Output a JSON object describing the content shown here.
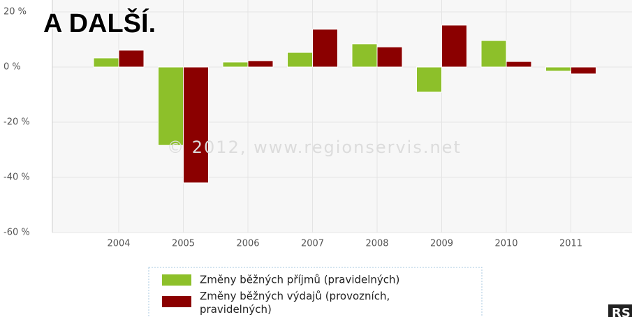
{
  "chart_data": {
    "type": "bar",
    "title": "A DALŠÍ.",
    "watermark": "© 2012, www.regionservis.net",
    "logo": "RS",
    "categories": [
      "2004",
      "2005",
      "2006",
      "2007",
      "2008",
      "2009",
      "2010",
      "2011"
    ],
    "series": [
      {
        "name": "Změny běžných příjmů (pravidelných)",
        "color": "#8dc02a",
        "values": [
          3.3,
          -28.4,
          1.8,
          5.3,
          8.4,
          -9.1,
          9.6,
          -1.5
        ]
      },
      {
        "name": "Změny běžných výdajů (provozních, pravidelných)",
        "color": "#8b0000",
        "values": [
          6.1,
          -42,
          2.3,
          13.7,
          7.3,
          15.2,
          2.0,
          -2.5
        ]
      }
    ],
    "ylim": [
      -60,
      20
    ],
    "yticks": [
      {
        "value": -60,
        "label": "-60 %"
      },
      {
        "value": -40,
        "label": "-40 %"
      },
      {
        "value": -20,
        "label": "-20 %"
      },
      {
        "value": 0,
        "label": "0 %"
      },
      {
        "value": 20,
        "label": "20 %"
      }
    ],
    "grid": true
  }
}
